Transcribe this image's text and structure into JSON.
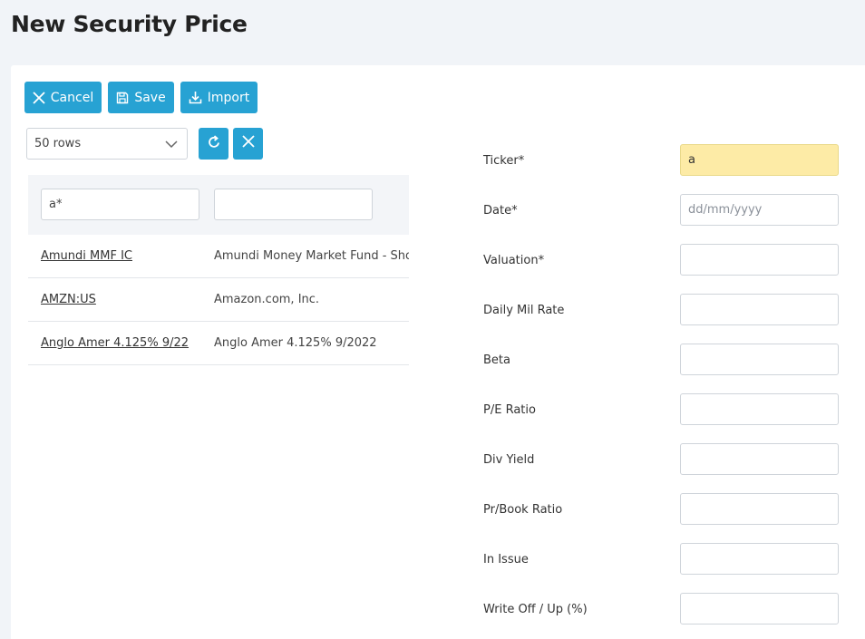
{
  "page": {
    "title": "New Security Price"
  },
  "toolbar": {
    "cancel_label": "Cancel",
    "save_label": "Save",
    "import_label": "Import"
  },
  "grid": {
    "rows_select": "50 rows",
    "filters": {
      "col1": "a*",
      "col2": ""
    },
    "rows": [
      {
        "code": "Amundi MMF IC",
        "name": "Amundi Money Market Fund - Sho"
      },
      {
        "code": "AMZN:US",
        "name": "Amazon.com, Inc."
      },
      {
        "code": "Anglo Amer 4.125% 9/22",
        "name": "Anglo Amer 4.125% 9/2022"
      }
    ]
  },
  "form": {
    "fields": [
      {
        "label": "Ticker*",
        "value": "a",
        "placeholder": ""
      },
      {
        "label": "Date*",
        "value": "",
        "placeholder": "dd/mm/yyyy"
      },
      {
        "label": "Valuation*",
        "value": "",
        "placeholder": ""
      },
      {
        "label": "Daily Mil Rate",
        "value": "",
        "placeholder": ""
      },
      {
        "label": "Beta",
        "value": "",
        "placeholder": ""
      },
      {
        "label": "P/E Ratio",
        "value": "",
        "placeholder": ""
      },
      {
        "label": "Div Yield",
        "value": "",
        "placeholder": ""
      },
      {
        "label": "Pr/Book Ratio",
        "value": "",
        "placeholder": ""
      },
      {
        "label": "In Issue",
        "value": "",
        "placeholder": ""
      },
      {
        "label": "Write Off / Up (%)",
        "value": "",
        "placeholder": ""
      }
    ]
  },
  "colors": {
    "accent": "#27a2d3",
    "highlight": "#fdeba6",
    "background": "#f1f4f8"
  },
  "icons": [
    "close-icon",
    "save-icon",
    "import-icon",
    "chevron-down-icon",
    "refresh-icon",
    "clear-icon"
  ]
}
